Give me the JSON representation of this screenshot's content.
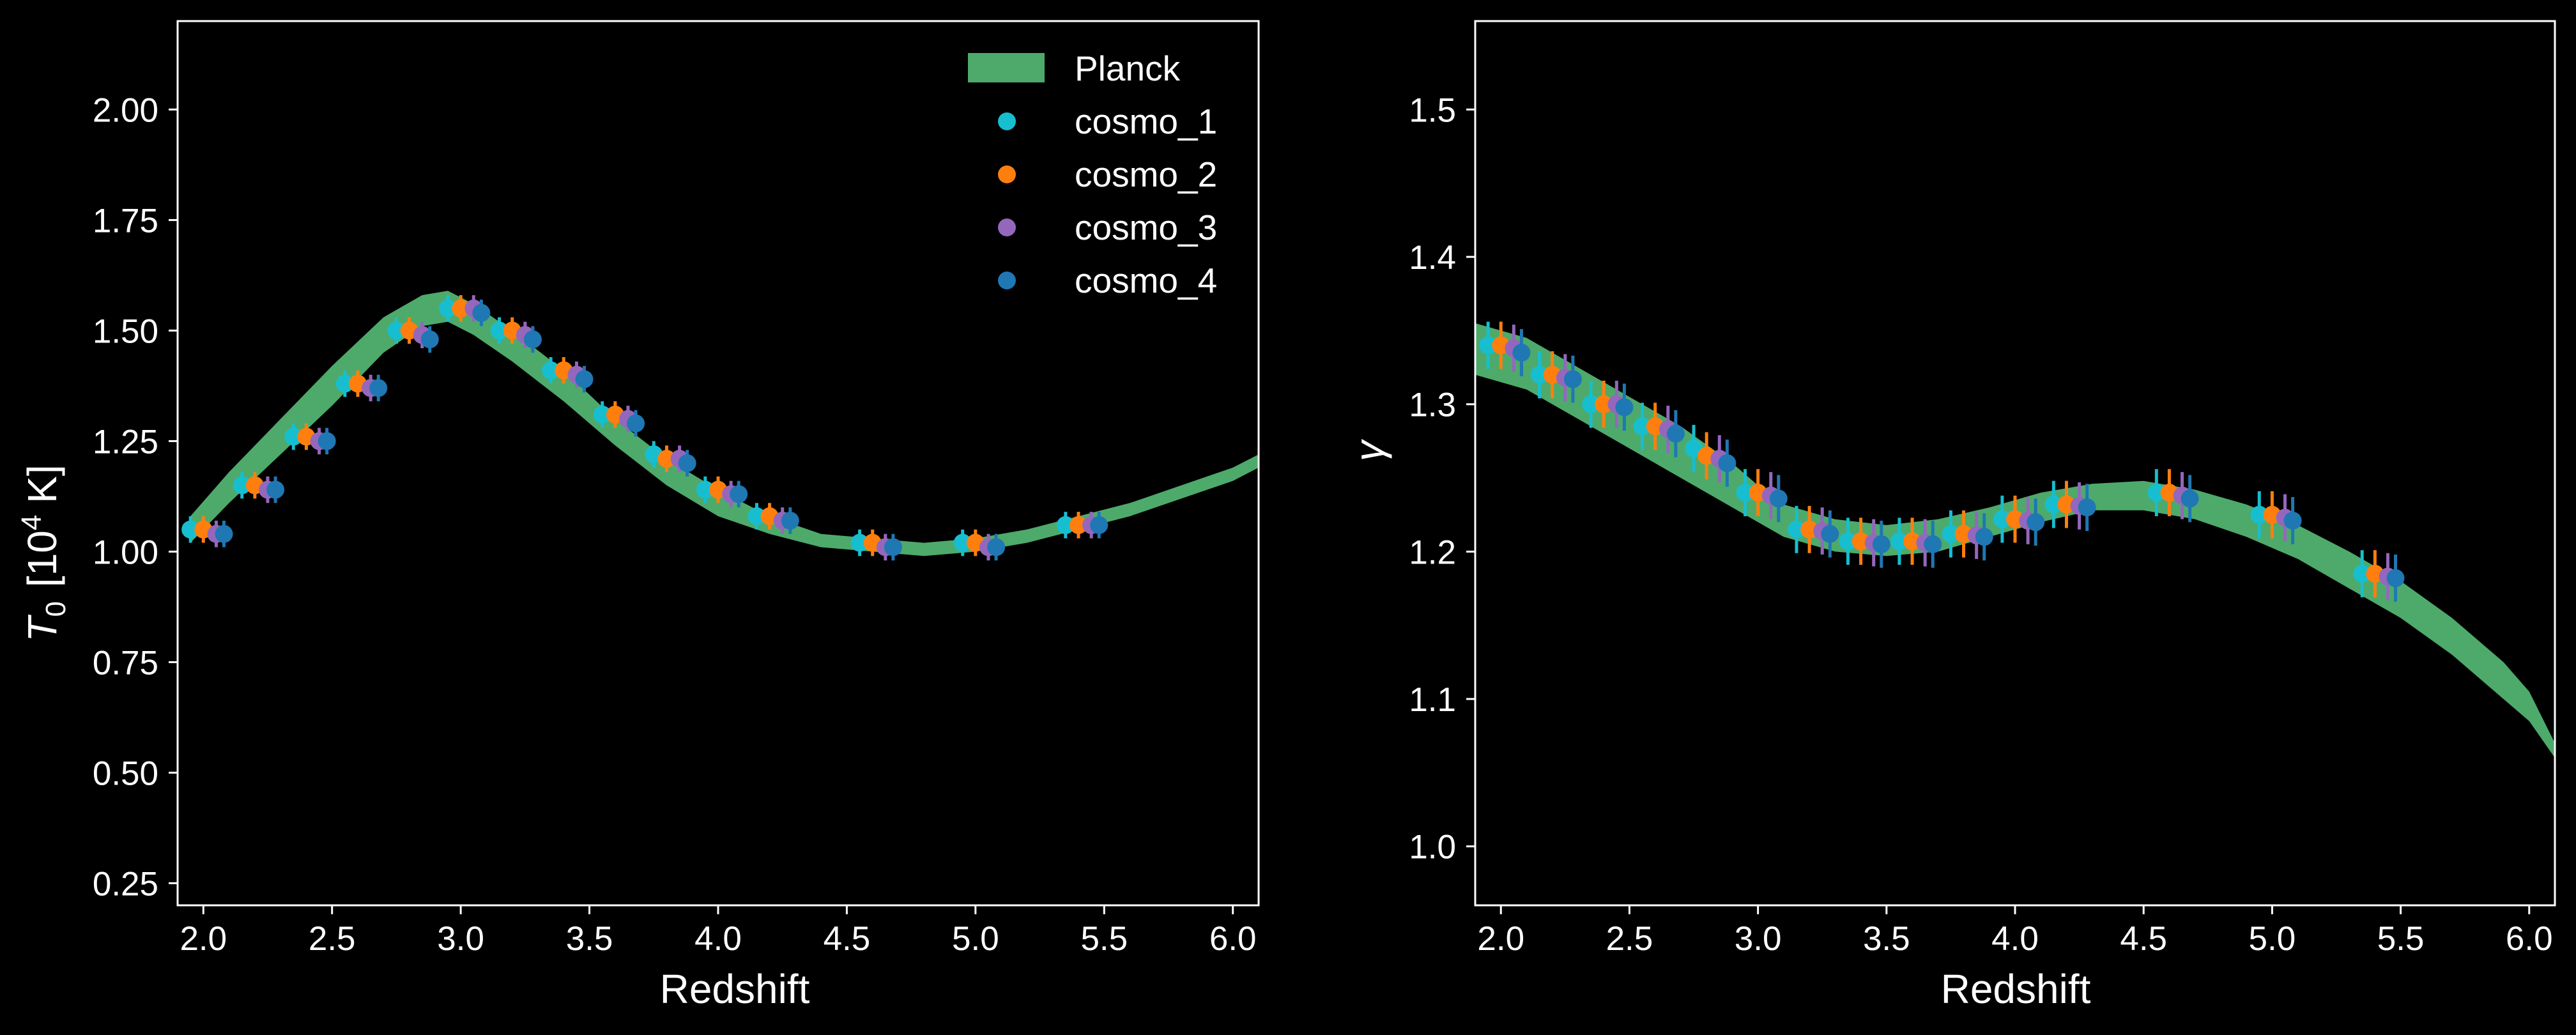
{
  "colors": {
    "background": "#000000",
    "axes": "#ffffff",
    "band": "#4daa6b",
    "cosmo_1": "#17becf",
    "cosmo_2": "#ff7f0e",
    "cosmo_3": "#9467bd",
    "cosmo_4": "#1f77b4"
  },
  "chart_data": [
    {
      "type": "scatter",
      "xlabel": "Redshift",
      "ylabel_main": "T",
      "ylabel_sub": "0",
      "ylabel_unit_pre": "[10",
      "ylabel_unit_sup": "4",
      "ylabel_unit_post": " K]",
      "xlim": [
        1.9,
        6.1
      ],
      "ylim": [
        0.2,
        2.2
      ],
      "xticks": [
        "2.0",
        "2.5",
        "3.0",
        "3.5",
        "4.0",
        "4.5",
        "5.0",
        "5.5",
        "6.0"
      ],
      "yticks": [
        "0.25",
        "0.50",
        "0.75",
        "1.00",
        "1.25",
        "1.50",
        "1.75",
        "2.00"
      ],
      "legend_position": "top-right",
      "band": {
        "name": "Planck",
        "x": [
          1.95,
          2.1,
          2.3,
          2.5,
          2.7,
          2.85,
          2.95,
          3.05,
          3.2,
          3.4,
          3.6,
          3.8,
          4.0,
          4.2,
          4.4,
          4.6,
          4.8,
          5.0,
          5.2,
          5.4,
          5.6,
          5.8,
          6.0,
          6.1
        ],
        "low": [
          1.02,
          1.11,
          1.22,
          1.33,
          1.45,
          1.51,
          1.52,
          1.49,
          1.43,
          1.34,
          1.24,
          1.15,
          1.08,
          1.04,
          1.01,
          1.0,
          0.99,
          1.0,
          1.02,
          1.05,
          1.08,
          1.12,
          1.16,
          1.19
        ],
        "high": [
          1.08,
          1.18,
          1.3,
          1.42,
          1.53,
          1.58,
          1.59,
          1.56,
          1.5,
          1.41,
          1.3,
          1.21,
          1.14,
          1.08,
          1.04,
          1.03,
          1.02,
          1.03,
          1.05,
          1.08,
          1.11,
          1.15,
          1.19,
          1.22
        ]
      },
      "series": [
        {
          "name": "cosmo_1",
          "x": [
            1.95,
            2.15,
            2.35,
            2.55,
            2.75,
            2.95,
            3.15,
            3.35,
            3.55,
            3.75,
            3.95,
            4.15,
            4.55,
            4.95,
            5.35
          ],
          "y": [
            1.05,
            1.15,
            1.26,
            1.38,
            1.5,
            1.55,
            1.5,
            1.41,
            1.31,
            1.22,
            1.14,
            1.08,
            1.02,
            1.02,
            1.06
          ],
          "err": 0.03
        },
        {
          "name": "cosmo_2",
          "x": [
            2.0,
            2.2,
            2.4,
            2.6,
            2.8,
            3.0,
            3.2,
            3.4,
            3.6,
            3.8,
            4.0,
            4.2,
            4.6,
            5.0,
            5.4
          ],
          "y": [
            1.05,
            1.15,
            1.26,
            1.38,
            1.5,
            1.55,
            1.5,
            1.41,
            1.31,
            1.21,
            1.14,
            1.08,
            1.02,
            1.02,
            1.06
          ],
          "err": 0.03
        },
        {
          "name": "cosmo_3",
          "x": [
            2.05,
            2.25,
            2.45,
            2.65,
            2.85,
            3.05,
            3.25,
            3.45,
            3.65,
            3.85,
            4.05,
            4.25,
            4.65,
            5.05,
            5.45
          ],
          "y": [
            1.04,
            1.14,
            1.25,
            1.37,
            1.49,
            1.55,
            1.49,
            1.4,
            1.3,
            1.21,
            1.13,
            1.07,
            1.01,
            1.01,
            1.06
          ],
          "err": 0.03
        },
        {
          "name": "cosmo_4",
          "x": [
            2.08,
            2.28,
            2.48,
            2.68,
            2.88,
            3.08,
            3.28,
            3.48,
            3.68,
            3.88,
            4.08,
            4.28,
            4.68,
            5.08,
            5.48
          ],
          "y": [
            1.04,
            1.14,
            1.25,
            1.37,
            1.48,
            1.54,
            1.48,
            1.39,
            1.29,
            1.2,
            1.13,
            1.07,
            1.01,
            1.01,
            1.06
          ],
          "err": 0.03
        }
      ]
    },
    {
      "type": "scatter",
      "xlabel": "Redshift",
      "ylabel": "γ",
      "xlim": [
        1.9,
        6.1
      ],
      "ylim": [
        0.96,
        1.56
      ],
      "xticks": [
        "2.0",
        "2.5",
        "3.0",
        "3.5",
        "4.0",
        "4.5",
        "5.0",
        "5.5",
        "6.0"
      ],
      "yticks": [
        "1.0",
        "1.1",
        "1.2",
        "1.3",
        "1.4",
        "1.5"
      ],
      "band": {
        "name": "Planck",
        "x": [
          1.9,
          2.1,
          2.3,
          2.5,
          2.7,
          2.9,
          3.0,
          3.1,
          3.3,
          3.5,
          3.7,
          3.9,
          4.1,
          4.3,
          4.5,
          4.7,
          4.9,
          5.1,
          5.3,
          5.5,
          5.7,
          5.9,
          6.0,
          6.1
        ],
        "low": [
          1.32,
          1.31,
          1.29,
          1.27,
          1.25,
          1.23,
          1.22,
          1.21,
          1.2,
          1.197,
          1.2,
          1.21,
          1.22,
          1.228,
          1.228,
          1.222,
          1.21,
          1.195,
          1.175,
          1.155,
          1.13,
          1.1,
          1.085,
          1.06
        ],
        "high": [
          1.355,
          1.345,
          1.325,
          1.305,
          1.285,
          1.26,
          1.245,
          1.232,
          1.222,
          1.218,
          1.222,
          1.23,
          1.24,
          1.246,
          1.248,
          1.242,
          1.232,
          1.218,
          1.2,
          1.18,
          1.155,
          1.125,
          1.105,
          1.07
        ]
      },
      "series": [
        {
          "name": "cosmo_1",
          "x": [
            1.95,
            2.15,
            2.35,
            2.55,
            2.75,
            2.95,
            3.15,
            3.35,
            3.55,
            3.75,
            3.95,
            4.15,
            4.55,
            4.95,
            5.35
          ],
          "y": [
            1.34,
            1.32,
            1.3,
            1.285,
            1.27,
            1.24,
            1.215,
            1.207,
            1.207,
            1.212,
            1.222,
            1.232,
            1.24,
            1.225,
            1.185
          ],
          "err": 0.016
        },
        {
          "name": "cosmo_2",
          "x": [
            2.0,
            2.2,
            2.4,
            2.6,
            2.8,
            3.0,
            3.2,
            3.4,
            3.6,
            3.8,
            4.0,
            4.2,
            4.6,
            5.0,
            5.4
          ],
          "y": [
            1.34,
            1.32,
            1.3,
            1.285,
            1.265,
            1.24,
            1.215,
            1.207,
            1.207,
            1.212,
            1.222,
            1.232,
            1.24,
            1.225,
            1.185
          ],
          "err": 0.016
        },
        {
          "name": "cosmo_3",
          "x": [
            2.05,
            2.25,
            2.45,
            2.65,
            2.85,
            3.05,
            3.25,
            3.45,
            3.65,
            3.85,
            4.05,
            4.25,
            4.65,
            5.05,
            5.45
          ],
          "y": [
            1.338,
            1.318,
            1.3,
            1.283,
            1.263,
            1.238,
            1.214,
            1.206,
            1.206,
            1.211,
            1.221,
            1.231,
            1.238,
            1.223,
            1.183
          ],
          "err": 0.016
        },
        {
          "name": "cosmo_4",
          "x": [
            2.08,
            2.28,
            2.48,
            2.68,
            2.88,
            3.08,
            3.28,
            3.48,
            3.68,
            3.88,
            4.08,
            4.28,
            4.68,
            5.08,
            5.48
          ],
          "y": [
            1.335,
            1.317,
            1.298,
            1.28,
            1.26,
            1.236,
            1.212,
            1.205,
            1.205,
            1.21,
            1.22,
            1.23,
            1.236,
            1.221,
            1.182
          ],
          "err": 0.016
        }
      ]
    }
  ]
}
